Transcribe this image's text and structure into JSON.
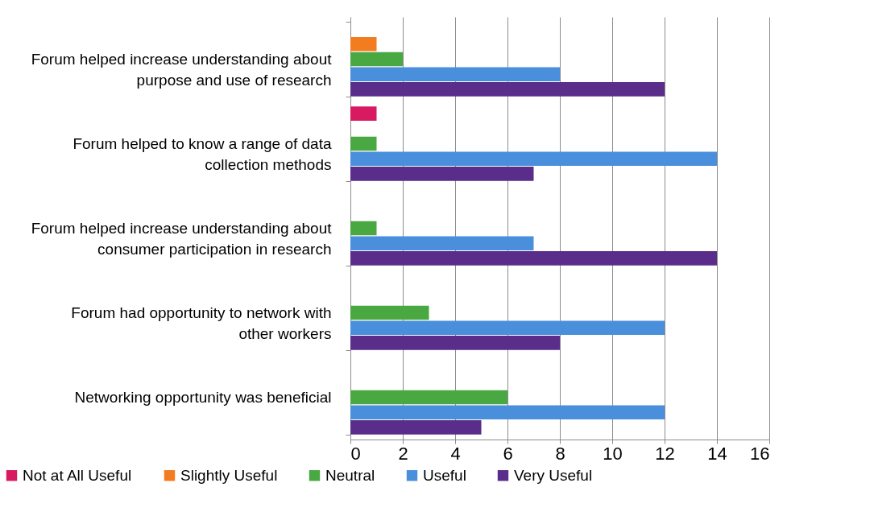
{
  "chart_data": {
    "type": "bar",
    "orientation": "horizontal",
    "categories": [
      "Forum helped increase understanding about purpose and use of research",
      "Forum helped to know a range of data collection methods",
      "Forum helped increase understanding about consumer participation in research",
      "Forum had opportunity to network with other workers",
      "Networking opportunity was beneficial"
    ],
    "series": [
      {
        "name": "Not at All Useful",
        "color": "#d81b60",
        "values": [
          0,
          1,
          0,
          0,
          0
        ]
      },
      {
        "name": "Slightly Useful",
        "color": "#f47c20",
        "values": [
          1,
          0,
          0,
          0,
          0
        ]
      },
      {
        "name": "Neutral",
        "color": "#4aa843",
        "values": [
          2,
          1,
          1,
          3,
          6
        ]
      },
      {
        "name": "Useful",
        "color": "#4a8fdc",
        "values": [
          8,
          14,
          7,
          12,
          12
        ]
      },
      {
        "name": "Very Useful",
        "color": "#5a2d8a",
        "values": [
          12,
          7,
          14,
          8,
          5
        ]
      }
    ],
    "xlim": [
      0,
      16
    ],
    "xticks": [
      0,
      2,
      4,
      6,
      8,
      10,
      12,
      14,
      16
    ],
    "grid": "x",
    "legend": "bottom"
  }
}
